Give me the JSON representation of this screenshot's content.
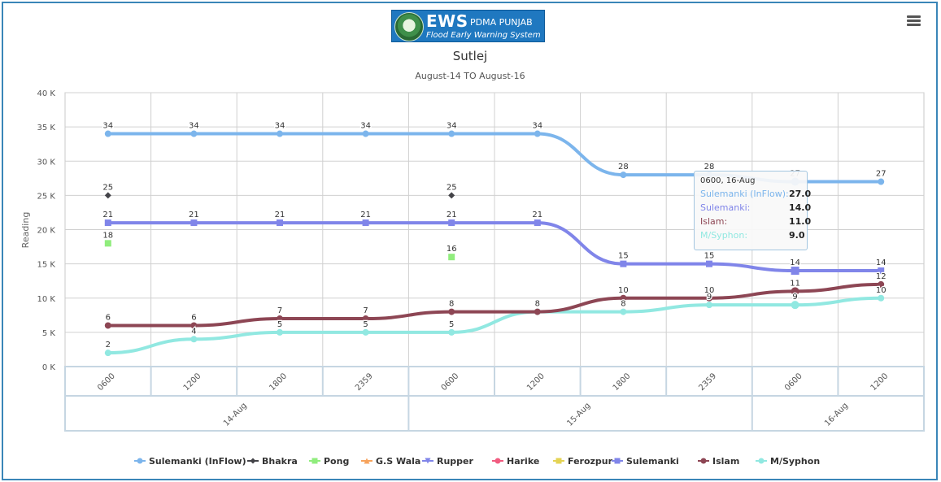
{
  "header": {
    "logo_ews": "EWS",
    "logo_org": "PDMA PUNJAB",
    "logo_tagline": "Flood Early Warning System"
  },
  "chart_data": {
    "type": "line",
    "title": "Sutlej",
    "subtitle": "August-14 TO August-16",
    "ylabel": "Reading",
    "ylim": [
      0,
      40000
    ],
    "y_ticks": [
      "0 K",
      "5 K",
      "10 K",
      "15 K",
      "20 K",
      "25 K",
      "30 K",
      "35 K",
      "40 K"
    ],
    "categories": [
      "0600",
      "1200",
      "1800",
      "2359",
      "0600",
      "1200",
      "1800",
      "2359",
      "0600",
      "1200"
    ],
    "date_groups": [
      {
        "label": "14-Aug",
        "span": 4
      },
      {
        "label": "15-Aug",
        "span": 4
      },
      {
        "label": "16-Aug",
        "span": 2
      }
    ],
    "grid": true,
    "legend_position": "bottom",
    "series": [
      {
        "name": "Sulemanki (InFlow)",
        "color": "#7cb5ec",
        "marker": "circle",
        "line": true,
        "values": [
          34000,
          34000,
          34000,
          34000,
          34000,
          34000,
          28000,
          28000,
          27000,
          27000
        ],
        "labels": [
          "34",
          "34",
          "34",
          "34",
          "34",
          "34",
          "28",
          "28",
          "27",
          "27"
        ]
      },
      {
        "name": "Bhakra",
        "color": "#434348",
        "marker": "diamond",
        "line": false,
        "values": [
          25000,
          null,
          null,
          null,
          25000,
          null,
          null,
          null,
          null,
          null
        ],
        "labels": [
          "25",
          null,
          null,
          null,
          "25",
          null,
          null,
          null,
          null,
          null
        ]
      },
      {
        "name": "Pong",
        "color": "#90ed7d",
        "marker": "square",
        "line": false,
        "values": [
          18000,
          null,
          null,
          null,
          16000,
          null,
          null,
          null,
          null,
          null
        ],
        "labels": [
          "18",
          null,
          null,
          null,
          "16",
          null,
          null,
          null,
          null,
          null
        ]
      },
      {
        "name": "G.S Wala",
        "color": "#f7a35c",
        "marker": "triangle",
        "line": false,
        "values": [
          null,
          null,
          null,
          null,
          null,
          null,
          null,
          null,
          null,
          null
        ],
        "labels": []
      },
      {
        "name": "Rupper",
        "color": "#8085e9",
        "marker": "triangle-down",
        "line": false,
        "values": [
          null,
          null,
          null,
          null,
          null,
          null,
          null,
          null,
          null,
          null
        ],
        "labels": []
      },
      {
        "name": "Harike",
        "color": "#f15c80",
        "marker": "circle",
        "line": false,
        "values": [
          null,
          null,
          null,
          null,
          null,
          null,
          null,
          null,
          null,
          null
        ],
        "labels": []
      },
      {
        "name": "Ferozpur",
        "color": "#e4d354",
        "marker": "square",
        "line": false,
        "values": [
          null,
          null,
          null,
          null,
          null,
          null,
          null,
          null,
          null,
          null
        ],
        "labels": []
      },
      {
        "name": "Sulemanki",
        "color": "#8085e9",
        "marker": "square",
        "line": true,
        "values": [
          21000,
          21000,
          21000,
          21000,
          21000,
          21000,
          15000,
          15000,
          14000,
          14000
        ],
        "labels": [
          "21",
          "21",
          "21",
          "21",
          "21",
          "21",
          "15",
          "15",
          "14",
          "14"
        ]
      },
      {
        "name": "Islam",
        "color": "#8d4654",
        "marker": "circle",
        "line": true,
        "values": [
          6000,
          6000,
          7000,
          7000,
          8000,
          8000,
          10000,
          10000,
          11000,
          12000
        ],
        "labels": [
          "6",
          "6",
          "7",
          "7",
          "8",
          "8",
          "10",
          "10",
          "11",
          "12"
        ]
      },
      {
        "name": "M/Syphon",
        "color": "#91e8e1",
        "marker": "circle",
        "line": true,
        "values": [
          2000,
          4000,
          5000,
          5000,
          5000,
          8000,
          8000,
          9000,
          9000,
          10000
        ],
        "labels": [
          "2",
          "4",
          "5",
          "5",
          "5",
          "8",
          "8",
          "9",
          "9",
          "10"
        ]
      }
    ],
    "tooltip": {
      "header": "0600, 16-Aug",
      "rows": [
        {
          "name": "Sulemanki (InFlow):",
          "value": "27.0",
          "color": "#7cb5ec"
        },
        {
          "name": "Sulemanki:",
          "value": "14.0",
          "color": "#8085e9"
        },
        {
          "name": "Islam:",
          "value": "11.0",
          "color": "#8d4654"
        },
        {
          "name": "M/Syphon:",
          "value": "9.0",
          "color": "#91e8e1"
        }
      ]
    }
  }
}
